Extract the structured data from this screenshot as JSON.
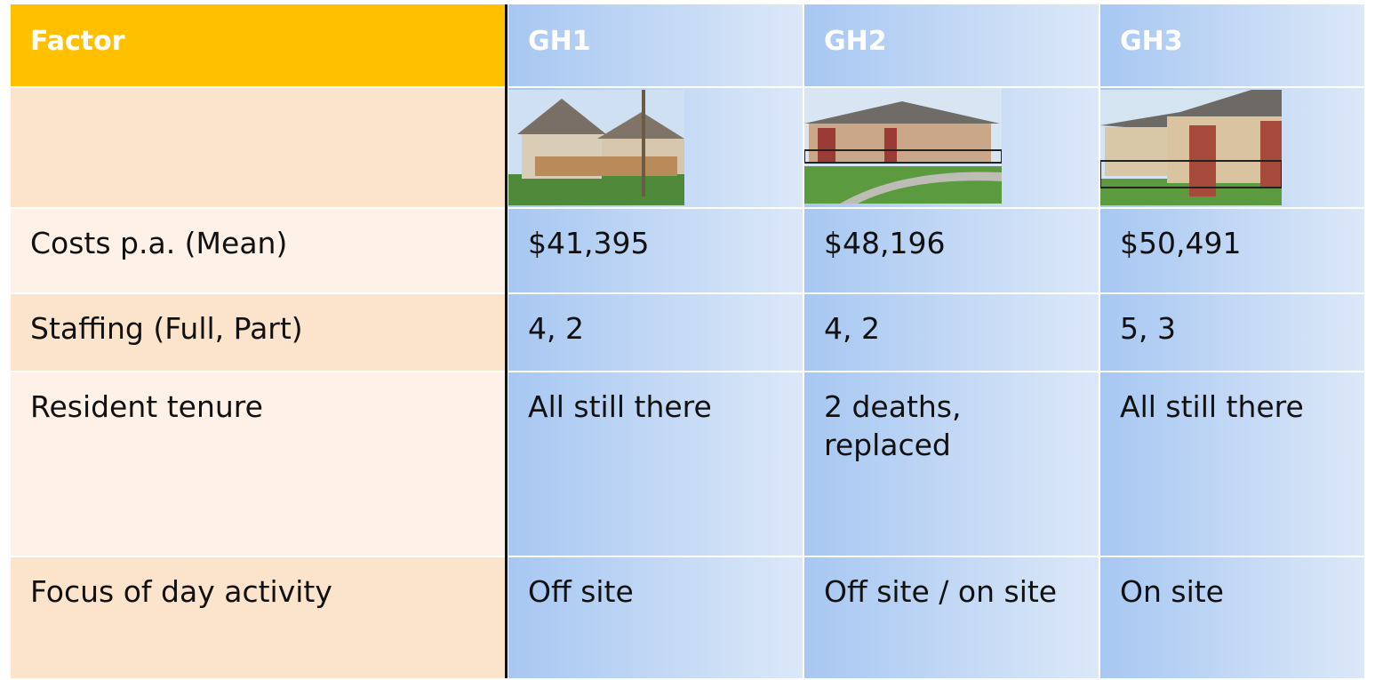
{
  "table": {
    "header": [
      "Factor",
      "GH1",
      "GH2",
      "GH3"
    ],
    "rows": [
      [
        "Costs p.a. (Mean)",
        "$41,395",
        "$48,196",
        "$50,491"
      ],
      [
        "Staffing (Full, Part)",
        "4, 2",
        "4, 2",
        "5, 3"
      ],
      [
        "Resident tenure",
        "All still there",
        "2 deaths, replaced",
        "All still there"
      ],
      [
        "Focus of day activity",
        "Off site",
        "Off site / on site",
        "On site"
      ]
    ]
  }
}
